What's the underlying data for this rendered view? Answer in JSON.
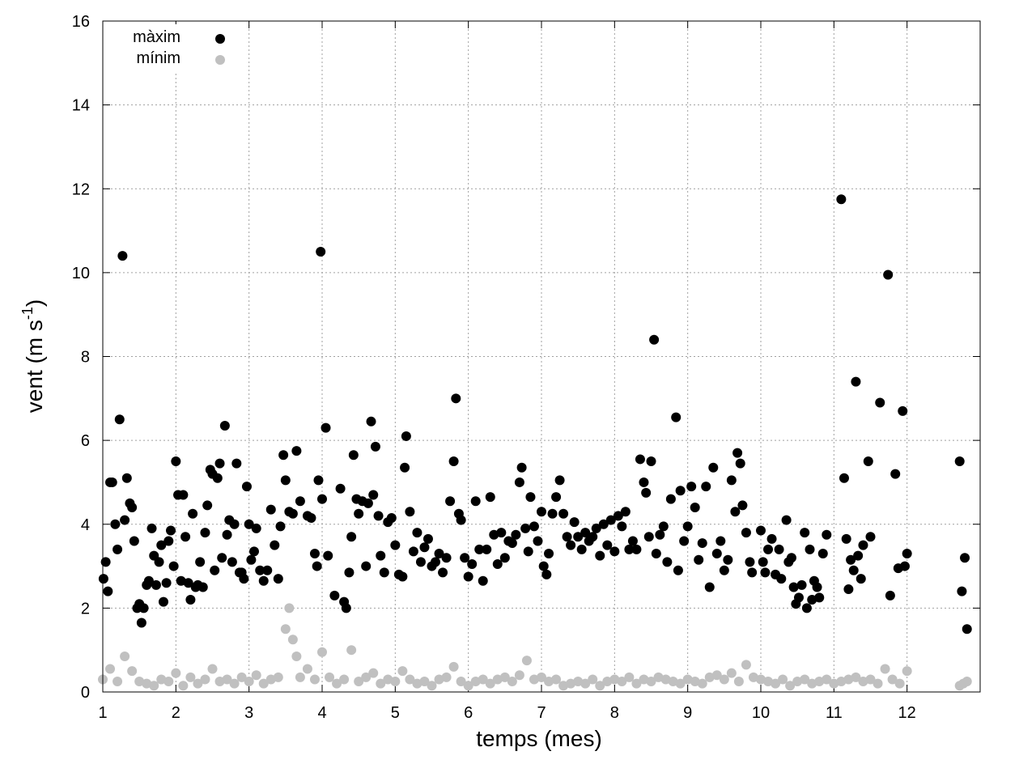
{
  "chart_data": {
    "type": "scatter",
    "x_label": "temps (mes)",
    "y_label": {
      "text": "vent (m s",
      "sup": "-1",
      "end": ")"
    },
    "xlim": [
      1,
      13
    ],
    "xticks": [
      1,
      2,
      3,
      4,
      5,
      6,
      7,
      8,
      9,
      10,
      11,
      12
    ],
    "ylim": [
      0,
      16
    ],
    "yticks": [
      0,
      2,
      4,
      6,
      8,
      10,
      12,
      14,
      16
    ],
    "grid": true,
    "legend": "top-left",
    "series": [
      {
        "name": "màxim",
        "color": "#000000",
        "x": [
          1.01,
          1.04,
          1.07,
          1.1,
          1.13,
          1.17,
          1.2,
          1.23,
          1.27,
          1.3,
          1.33,
          1.37,
          1.4,
          1.43,
          1.47,
          1.5,
          1.53,
          1.56,
          1.6,
          1.63,
          1.67,
          1.7,
          1.73,
          1.77,
          1.8,
          1.83,
          1.87,
          1.9,
          1.93,
          1.97,
          2.0,
          2.03,
          2.07,
          2.1,
          2.13,
          2.17,
          2.2,
          2.23,
          2.27,
          2.3,
          2.33,
          2.37,
          2.4,
          2.43,
          2.47,
          2.5,
          2.53,
          2.57,
          2.6,
          2.63,
          2.67,
          2.7,
          2.73,
          2.77,
          2.8,
          2.83,
          2.87,
          2.9,
          2.93,
          2.97,
          3.0,
          3.03,
          3.07,
          3.1,
          3.15,
          3.2,
          3.25,
          3.3,
          3.35,
          3.4,
          3.43,
          3.47,
          3.5,
          3.55,
          3.6,
          3.65,
          3.7,
          3.8,
          3.85,
          3.9,
          3.93,
          3.95,
          3.98,
          4.0,
          4.05,
          4.08,
          4.17,
          4.25,
          4.3,
          4.33,
          4.37,
          4.4,
          4.43,
          4.47,
          4.5,
          4.55,
          4.6,
          4.63,
          4.67,
          4.7,
          4.73,
          4.77,
          4.8,
          4.85,
          4.9,
          4.95,
          5.0,
          5.05,
          5.1,
          5.13,
          5.15,
          5.2,
          5.25,
          5.3,
          5.35,
          5.4,
          5.45,
          5.5,
          5.55,
          5.6,
          5.65,
          5.7,
          5.75,
          5.8,
          5.83,
          5.87,
          5.9,
          5.95,
          6.0,
          6.05,
          6.1,
          6.15,
          6.2,
          6.25,
          6.3,
          6.35,
          6.4,
          6.45,
          6.5,
          6.55,
          6.6,
          6.65,
          6.7,
          6.73,
          6.78,
          6.82,
          6.85,
          6.9,
          6.95,
          7.0,
          7.03,
          7.07,
          7.1,
          7.15,
          7.2,
          7.25,
          7.3,
          7.35,
          7.4,
          7.45,
          7.5,
          7.55,
          7.6,
          7.65,
          7.7,
          7.75,
          7.8,
          7.85,
          7.9,
          7.95,
          8.0,
          8.05,
          8.1,
          8.15,
          8.2,
          8.25,
          8.3,
          8.35,
          8.4,
          8.43,
          8.47,
          8.5,
          8.54,
          8.57,
          8.62,
          8.67,
          8.72,
          8.77,
          8.84,
          8.87,
          8.9,
          8.95,
          9.0,
          9.05,
          9.1,
          9.15,
          9.2,
          9.25,
          9.3,
          9.35,
          9.4,
          9.45,
          9.5,
          9.55,
          9.6,
          9.65,
          9.68,
          9.72,
          9.75,
          9.8,
          9.85,
          9.88,
          10.0,
          10.03,
          10.06,
          10.1,
          10.15,
          10.2,
          10.25,
          10.28,
          10.35,
          10.38,
          10.42,
          10.45,
          10.48,
          10.52,
          10.56,
          10.6,
          10.63,
          10.67,
          10.7,
          10.73,
          10.77,
          10.8,
          10.85,
          10.9,
          11.1,
          11.14,
          11.17,
          11.2,
          11.23,
          11.27,
          11.3,
          11.33,
          11.37,
          11.4,
          11.47,
          11.5,
          11.63,
          11.74,
          11.77,
          11.84,
          11.88,
          11.94,
          11.97,
          12.0,
          12.72,
          12.75,
          12.79,
          12.82
        ],
        "values": [
          2.7,
          3.1,
          2.4,
          5.0,
          5.0,
          4.0,
          3.4,
          6.5,
          10.4,
          4.1,
          5.1,
          4.5,
          4.4,
          3.6,
          2.0,
          2.1,
          1.65,
          2.0,
          2.55,
          2.65,
          3.9,
          3.25,
          2.55,
          3.1,
          3.5,
          2.15,
          2.6,
          3.6,
          3.85,
          3.0,
          5.5,
          4.7,
          2.65,
          4.7,
          3.7,
          2.6,
          2.2,
          4.25,
          2.5,
          2.55,
          3.1,
          2.5,
          3.8,
          4.45,
          5.3,
          5.2,
          2.9,
          5.1,
          5.45,
          3.2,
          6.35,
          3.75,
          4.1,
          3.1,
          4.0,
          5.45,
          2.85,
          2.85,
          2.7,
          4.9,
          4.0,
          3.15,
          3.35,
          3.9,
          2.9,
          2.65,
          2.9,
          4.35,
          3.5,
          2.7,
          3.95,
          5.65,
          5.05,
          4.3,
          4.25,
          5.75,
          4.55,
          4.2,
          4.15,
          3.3,
          3.0,
          5.05,
          10.5,
          4.6,
          6.3,
          3.25,
          2.3,
          4.85,
          2.15,
          2.0,
          2.85,
          3.7,
          5.65,
          4.6,
          4.25,
          4.55,
          3.0,
          4.5,
          6.45,
          4.7,
          5.85,
          4.2,
          3.25,
          2.85,
          4.05,
          4.15,
          3.5,
          2.8,
          2.75,
          5.35,
          6.1,
          4.3,
          3.35,
          3.8,
          3.1,
          3.45,
          3.65,
          3.0,
          3.1,
          3.3,
          2.85,
          3.2,
          4.55,
          5.5,
          7.0,
          4.25,
          4.1,
          3.2,
          2.75,
          3.05,
          4.55,
          3.4,
          2.65,
          3.4,
          4.65,
          3.75,
          3.05,
          3.8,
          3.2,
          3.6,
          3.55,
          3.75,
          5.0,
          5.35,
          3.9,
          3.35,
          4.65,
          3.95,
          3.6,
          4.3,
          3.0,
          2.8,
          3.3,
          4.25,
          4.65,
          5.05,
          4.25,
          3.7,
          3.5,
          4.05,
          3.7,
          3.4,
          3.8,
          3.6,
          3.7,
          3.9,
          3.25,
          4.0,
          3.5,
          4.1,
          3.35,
          4.2,
          3.95,
          4.3,
          3.4,
          3.6,
          3.4,
          5.55,
          5.0,
          4.75,
          3.7,
          5.5,
          8.4,
          3.3,
          3.75,
          3.95,
          3.1,
          4.6,
          6.55,
          2.9,
          4.8,
          3.6,
          3.95,
          4.9,
          4.4,
          3.15,
          3.55,
          4.9,
          2.5,
          5.35,
          3.3,
          3.6,
          2.9,
          3.15,
          5.05,
          4.3,
          5.7,
          5.45,
          4.45,
          3.8,
          3.1,
          2.85,
          3.85,
          3.1,
          2.85,
          3.4,
          3.65,
          2.8,
          3.4,
          2.7,
          4.1,
          3.1,
          3.2,
          2.5,
          2.1,
          2.25,
          2.55,
          3.8,
          2.0,
          3.4,
          2.2,
          2.65,
          2.5,
          2.25,
          3.3,
          3.75,
          11.75,
          5.1,
          3.65,
          2.45,
          3.15,
          2.9,
          7.4,
          3.25,
          2.7,
          3.5,
          5.5,
          3.7,
          6.9,
          9.95,
          2.3,
          5.2,
          2.95,
          6.7,
          3.0,
          3.3,
          5.5,
          2.4,
          3.2,
          1.5
        ]
      },
      {
        "name": "mínim",
        "color": "#c0c0c0",
        "x": [
          1.0,
          1.1,
          1.2,
          1.3,
          1.4,
          1.5,
          1.6,
          1.7,
          1.8,
          1.9,
          2.0,
          2.1,
          2.2,
          2.3,
          2.4,
          2.5,
          2.6,
          2.7,
          2.8,
          2.9,
          3.0,
          3.1,
          3.2,
          3.3,
          3.4,
          3.5,
          3.6,
          3.7,
          3.8,
          3.9,
          4.0,
          4.1,
          4.2,
          4.3,
          4.4,
          4.5,
          4.6,
          4.7,
          4.8,
          4.9,
          5.0,
          5.1,
          5.2,
          5.3,
          5.4,
          5.5,
          5.6,
          5.7,
          5.8,
          5.9,
          6.0,
          6.1,
          6.2,
          6.3,
          6.4,
          6.5,
          6.6,
          6.7,
          6.8,
          6.9,
          7.0,
          7.1,
          7.2,
          7.3,
          7.4,
          7.5,
          7.6,
          7.7,
          7.8,
          7.9,
          8.0,
          8.1,
          8.2,
          8.3,
          8.4,
          8.5,
          8.6,
          8.7,
          8.8,
          8.9,
          9.0,
          9.1,
          9.2,
          9.3,
          9.4,
          9.5,
          9.6,
          9.7,
          9.8,
          9.9,
          10.0,
          10.1,
          10.2,
          10.3,
          10.4,
          10.5,
          10.6,
          10.7,
          10.8,
          10.9,
          11.0,
          11.1,
          11.2,
          11.3,
          11.4,
          11.5,
          11.6,
          11.7,
          11.8,
          11.9,
          12.0,
          3.55,
          3.65,
          12.72,
          12.77,
          12.82
        ],
        "values": [
          0.3,
          0.55,
          0.25,
          0.85,
          0.5,
          0.25,
          0.2,
          0.15,
          0.3,
          0.25,
          0.45,
          0.15,
          0.35,
          0.2,
          0.3,
          0.55,
          0.25,
          0.3,
          0.2,
          0.35,
          0.25,
          0.4,
          0.2,
          0.3,
          0.35,
          1.5,
          1.25,
          0.35,
          0.55,
          0.3,
          0.95,
          0.35,
          0.2,
          0.3,
          1.0,
          0.25,
          0.35,
          0.45,
          0.2,
          0.3,
          0.25,
          0.5,
          0.3,
          0.2,
          0.25,
          0.15,
          0.3,
          0.35,
          0.6,
          0.25,
          0.15,
          0.25,
          0.3,
          0.2,
          0.3,
          0.35,
          0.25,
          0.4,
          0.75,
          0.3,
          0.35,
          0.25,
          0.3,
          0.15,
          0.2,
          0.25,
          0.2,
          0.3,
          0.15,
          0.25,
          0.3,
          0.25,
          0.35,
          0.2,
          0.3,
          0.25,
          0.35,
          0.3,
          0.25,
          0.2,
          0.3,
          0.25,
          0.2,
          0.35,
          0.4,
          0.3,
          0.45,
          0.25,
          0.65,
          0.35,
          0.3,
          0.25,
          0.2,
          0.3,
          0.15,
          0.25,
          0.3,
          0.2,
          0.25,
          0.3,
          0.2,
          0.25,
          0.3,
          0.35,
          0.25,
          0.3,
          0.2,
          0.55,
          0.3,
          0.2,
          0.5,
          2.0,
          0.85,
          0.15,
          0.2,
          0.25
        ]
      }
    ]
  }
}
